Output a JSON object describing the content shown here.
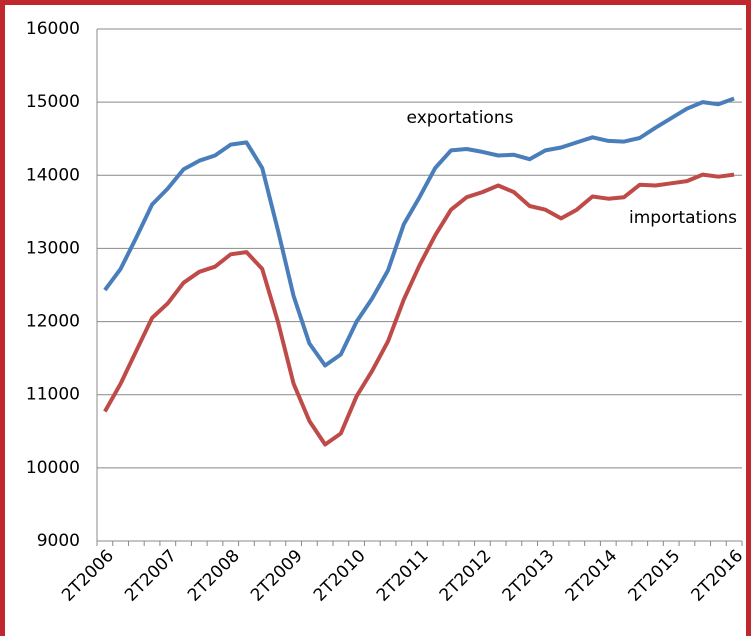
{
  "chart_data": {
    "type": "line",
    "categories": [
      "2T2006",
      null,
      null,
      null,
      "2T2007",
      null,
      null,
      null,
      "2T2008",
      null,
      null,
      null,
      "2T2009",
      null,
      null,
      null,
      "2T2010",
      null,
      null,
      null,
      "2T2011",
      null,
      null,
      null,
      "2T2012",
      null,
      null,
      null,
      "2T2013",
      null,
      null,
      null,
      "2T2014",
      null,
      null,
      null,
      "2T2015",
      null,
      null,
      null,
      "2T2016"
    ],
    "series": [
      {
        "name": "exportations",
        "color": "#4a7ebb",
        "values": [
          12430,
          12720,
          13150,
          13600,
          13820,
          14080,
          14200,
          14270,
          14420,
          14450,
          14100,
          13250,
          12350,
          11700,
          11400,
          11550,
          12000,
          12320,
          12700,
          13330,
          13700,
          14100,
          14340,
          14360,
          14320,
          14270,
          14280,
          14220,
          14340,
          14380,
          14450,
          14520,
          14470,
          14460,
          14510,
          14650,
          14780,
          14910,
          15000,
          14970,
          15050
        ]
      },
      {
        "name": "importations",
        "color": "#be4b48",
        "values": [
          10770,
          11150,
          11600,
          12050,
          12250,
          12530,
          12680,
          12750,
          12920,
          12950,
          12720,
          12000,
          11150,
          10640,
          10320,
          10470,
          10980,
          11330,
          11730,
          12300,
          12770,
          13180,
          13530,
          13700,
          13770,
          13860,
          13770,
          13580,
          13530,
          13410,
          13530,
          13710,
          13680,
          13700,
          13870,
          13860,
          13890,
          13920,
          14010,
          13980,
          14010
        ]
      }
    ],
    "ylim": [
      9000,
      16000
    ],
    "yticks": [
      9000,
      10000,
      11000,
      12000,
      13000,
      14000,
      15000,
      16000
    ],
    "grid": true
  }
}
